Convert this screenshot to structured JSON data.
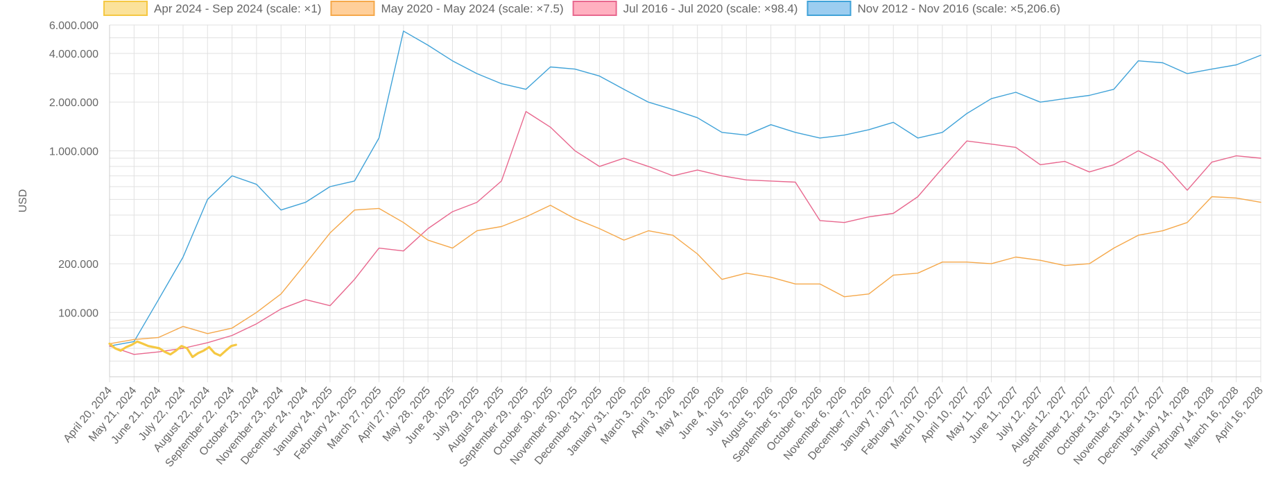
{
  "chart_data": {
    "type": "line",
    "y_scale": "log",
    "ylabel": "USD",
    "xlabel": "",
    "ylim": [
      40000,
      6000000
    ],
    "grid": true,
    "legend_position": "top",
    "y_ticks": [
      {
        "value": 6000000,
        "label": "6.000.000"
      },
      {
        "value": 4000000,
        "label": "4.000.000"
      },
      {
        "value": 2000000,
        "label": "2.000.000"
      },
      {
        "value": 1000000,
        "label": "1.000.000"
      },
      {
        "value": 200000,
        "label": "200.000"
      },
      {
        "value": 100000,
        "label": "100.000"
      }
    ],
    "x_ticks": [
      "April 20, 2024",
      "May 21, 2024",
      "June 21, 2024",
      "July 22, 2024",
      "August 22, 2024",
      "September 22, 2024",
      "October 23, 2024",
      "November 23, 2024",
      "December 24, 2024",
      "January 24, 2025",
      "February 24, 2025",
      "March 27, 2025",
      "April 27, 2025",
      "May 28, 2025",
      "June 28, 2025",
      "July 29, 2025",
      "August 29, 2025",
      "September 29, 2025",
      "October 30, 2025",
      "November 30, 2025",
      "December 31, 2025",
      "January 31, 2026",
      "March 3, 2026",
      "April 3, 2026",
      "May 4, 2026",
      "June 4, 2026",
      "July 5, 2026",
      "August 5, 2026",
      "September 5, 2026",
      "October 6, 2026",
      "November 6, 2026",
      "December 7, 2026",
      "January 7, 2027",
      "February 7, 2027",
      "March 10, 2027",
      "April 10, 2027",
      "May 11, 2027",
      "June 11, 2027",
      "July 12, 2027",
      "August 12, 2027",
      "September 12, 2027",
      "October 13, 2027",
      "November 13, 2027",
      "December 14, 2027",
      "January 14, 2028",
      "February 14, 2028",
      "March 16, 2028",
      "April 16, 2028"
    ],
    "series": [
      {
        "name": "Apr 2024 - Sep 2024 (scale: ×1)",
        "color": "#f5c842",
        "legend_fill": "#fbe29a",
        "width": 3.2,
        "points": [
          [
            "April 20, 2024",
            64000
          ],
          [
            "April 27, 2024",
            60000
          ],
          [
            "May 4, 2024",
            58000
          ],
          [
            "May 11, 2024",
            61000
          ],
          [
            "May 18, 2024",
            63000
          ],
          [
            "May 25, 2024",
            66000
          ],
          [
            "June 1, 2024",
            64000
          ],
          [
            "June 8, 2024",
            62000
          ],
          [
            "June 15, 2024",
            61000
          ],
          [
            "June 22, 2024",
            60000
          ],
          [
            "June 29, 2024",
            57000
          ],
          [
            "July 6, 2024",
            55000
          ],
          [
            "July 13, 2024",
            58000
          ],
          [
            "July 20, 2024",
            62000
          ],
          [
            "July 27, 2024",
            60000
          ],
          [
            "August 3, 2024",
            53000
          ],
          [
            "August 10, 2024",
            56000
          ],
          [
            "August 17, 2024",
            58000
          ],
          [
            "August 24, 2024",
            61000
          ],
          [
            "August 31, 2024",
            56000
          ],
          [
            "September 7, 2024",
            54000
          ],
          [
            "September 14, 2024",
            58000
          ],
          [
            "September 21, 2024",
            62000
          ],
          [
            "September 27, 2024",
            63000
          ]
        ]
      },
      {
        "name": "May 2020 - May 2024 (scale: ×7.5)",
        "color": "#f5a84a",
        "legend_fill": "#ffcf9a",
        "width": 1.4,
        "points": [
          [
            "April 20, 2024",
            64000
          ],
          [
            "May 21, 2024",
            68000
          ],
          [
            "June 21, 2024",
            70000
          ],
          [
            "July 22, 2024",
            82000
          ],
          [
            "August 22, 2024",
            74000
          ],
          [
            "September 22, 2024",
            80000
          ],
          [
            "October 23, 2024",
            100000
          ],
          [
            "November 23, 2024",
            130000
          ],
          [
            "December 24, 2024",
            200000
          ],
          [
            "January 24, 2025",
            310000
          ],
          [
            "February 24, 2025",
            430000
          ],
          [
            "March 27, 2025",
            440000
          ],
          [
            "April 27, 2025",
            360000
          ],
          [
            "May 28, 2025",
            280000
          ],
          [
            "June 28, 2025",
            250000
          ],
          [
            "July 29, 2025",
            320000
          ],
          [
            "August 29, 2025",
            340000
          ],
          [
            "September 29, 2025",
            390000
          ],
          [
            "October 30, 2025",
            460000
          ],
          [
            "November 30, 2025",
            380000
          ],
          [
            "December 31, 2025",
            330000
          ],
          [
            "January 31, 2026",
            280000
          ],
          [
            "March 3, 2026",
            320000
          ],
          [
            "April 3, 2026",
            300000
          ],
          [
            "May 4, 2026",
            230000
          ],
          [
            "June 4, 2026",
            160000
          ],
          [
            "July 5, 2026",
            175000
          ],
          [
            "August 5, 2026",
            165000
          ],
          [
            "September 5, 2026",
            150000
          ],
          [
            "October 6, 2026",
            150000
          ],
          [
            "November 6, 2026",
            125000
          ],
          [
            "December 7, 2026",
            130000
          ],
          [
            "January 7, 2027",
            170000
          ],
          [
            "February 7, 2027",
            175000
          ],
          [
            "March 10, 2027",
            205000
          ],
          [
            "April 10, 2027",
            205000
          ],
          [
            "May 11, 2027",
            200000
          ],
          [
            "June 11, 2027",
            220000
          ],
          [
            "July 12, 2027",
            210000
          ],
          [
            "August 12, 2027",
            195000
          ],
          [
            "September 12, 2027",
            200000
          ],
          [
            "October 13, 2027",
            250000
          ],
          [
            "November 13, 2027",
            300000
          ],
          [
            "December 14, 2027",
            320000
          ],
          [
            "January 14, 2028",
            360000
          ],
          [
            "February 14, 2028",
            520000
          ],
          [
            "March 16, 2028",
            510000
          ],
          [
            "April 16, 2028",
            480000
          ]
        ]
      },
      {
        "name": "Jul 2016 - Jul 2020 (scale: ×98.4)",
        "color": "#e8678e",
        "legend_fill": "#ffb0c0",
        "width": 1.4,
        "points": [
          [
            "April 20, 2024",
            62000
          ],
          [
            "May 21, 2024",
            55000
          ],
          [
            "June 21, 2024",
            57000
          ],
          [
            "July 22, 2024",
            60000
          ],
          [
            "August 22, 2024",
            65000
          ],
          [
            "September 22, 2024",
            72000
          ],
          [
            "October 23, 2024",
            85000
          ],
          [
            "November 23, 2024",
            105000
          ],
          [
            "December 24, 2024",
            120000
          ],
          [
            "January 24, 2025",
            110000
          ],
          [
            "February 24, 2025",
            160000
          ],
          [
            "March 27, 2025",
            250000
          ],
          [
            "April 27, 2025",
            240000
          ],
          [
            "May 28, 2025",
            330000
          ],
          [
            "June 28, 2025",
            420000
          ],
          [
            "July 29, 2025",
            480000
          ],
          [
            "August 29, 2025",
            650000
          ],
          [
            "September 29, 2025",
            1750000
          ],
          [
            "October 30, 2025",
            1400000
          ],
          [
            "November 30, 2025",
            1000000
          ],
          [
            "December 31, 2025",
            800000
          ],
          [
            "January 31, 2026",
            900000
          ],
          [
            "March 3, 2026",
            800000
          ],
          [
            "April 3, 2026",
            700000
          ],
          [
            "May 4, 2026",
            760000
          ],
          [
            "June 4, 2026",
            700000
          ],
          [
            "July 5, 2026",
            660000
          ],
          [
            "August 5, 2026",
            650000
          ],
          [
            "September 5, 2026",
            640000
          ],
          [
            "October 6, 2026",
            370000
          ],
          [
            "November 6, 2026",
            360000
          ],
          [
            "December 7, 2026",
            390000
          ],
          [
            "January 7, 2027",
            410000
          ],
          [
            "February 7, 2027",
            520000
          ],
          [
            "March 10, 2027",
            780000
          ],
          [
            "April 10, 2027",
            1150000
          ],
          [
            "May 11, 2027",
            1100000
          ],
          [
            "June 11, 2027",
            1050000
          ],
          [
            "July 12, 2027",
            820000
          ],
          [
            "August 12, 2027",
            860000
          ],
          [
            "September 12, 2027",
            740000
          ],
          [
            "October 13, 2027",
            820000
          ],
          [
            "November 13, 2027",
            1000000
          ],
          [
            "December 14, 2027",
            840000
          ],
          [
            "January 14, 2028",
            570000
          ],
          [
            "February 14, 2028",
            850000
          ],
          [
            "March 16, 2028",
            930000
          ],
          [
            "April 16, 2028",
            900000
          ]
        ]
      },
      {
        "name": "Nov 2012 - Nov 2016 (scale: ×5,206.6)",
        "color": "#3fa2d8",
        "legend_fill": "#9ccdf0",
        "width": 1.4,
        "points": [
          [
            "April 20, 2024",
            62000
          ],
          [
            "May 21, 2024",
            66000
          ],
          [
            "June 21, 2024",
            120000
          ],
          [
            "July 22, 2024",
            220000
          ],
          [
            "August 22, 2024",
            500000
          ],
          [
            "September 22, 2024",
            700000
          ],
          [
            "October 23, 2024",
            620000
          ],
          [
            "November 23, 2024",
            430000
          ],
          [
            "December 24, 2024",
            480000
          ],
          [
            "January 24, 2025",
            600000
          ],
          [
            "February 24, 2025",
            650000
          ],
          [
            "March 27, 2025",
            1200000
          ],
          [
            "April 27, 2025",
            5500000
          ],
          [
            "May 28, 2025",
            4500000
          ],
          [
            "June 28, 2025",
            3600000
          ],
          [
            "July 29, 2025",
            3000000
          ],
          [
            "August 29, 2025",
            2600000
          ],
          [
            "September 29, 2025",
            2400000
          ],
          [
            "October 30, 2025",
            3300000
          ],
          [
            "November 30, 2025",
            3200000
          ],
          [
            "December 31, 2025",
            2900000
          ],
          [
            "January 31, 2026",
            2400000
          ],
          [
            "March 3, 2026",
            2000000
          ],
          [
            "April 3, 2026",
            1800000
          ],
          [
            "May 4, 2026",
            1600000
          ],
          [
            "June 4, 2026",
            1300000
          ],
          [
            "July 5, 2026",
            1250000
          ],
          [
            "August 5, 2026",
            1450000
          ],
          [
            "September 5, 2026",
            1300000
          ],
          [
            "October 6, 2026",
            1200000
          ],
          [
            "November 6, 2026",
            1250000
          ],
          [
            "December 7, 2026",
            1350000
          ],
          [
            "January 7, 2027",
            1500000
          ],
          [
            "February 7, 2027",
            1200000
          ],
          [
            "March 10, 2027",
            1300000
          ],
          [
            "April 10, 2027",
            1700000
          ],
          [
            "May 11, 2027",
            2100000
          ],
          [
            "June 11, 2027",
            2300000
          ],
          [
            "July 12, 2027",
            2000000
          ],
          [
            "August 12, 2027",
            2100000
          ],
          [
            "September 12, 2027",
            2200000
          ],
          [
            "October 13, 2027",
            2400000
          ],
          [
            "November 13, 2027",
            3600000
          ],
          [
            "December 14, 2027",
            3500000
          ],
          [
            "January 14, 2028",
            3000000
          ],
          [
            "February 14, 2028",
            3200000
          ],
          [
            "March 16, 2028",
            3400000
          ],
          [
            "April 16, 2028",
            3900000
          ]
        ]
      }
    ]
  }
}
